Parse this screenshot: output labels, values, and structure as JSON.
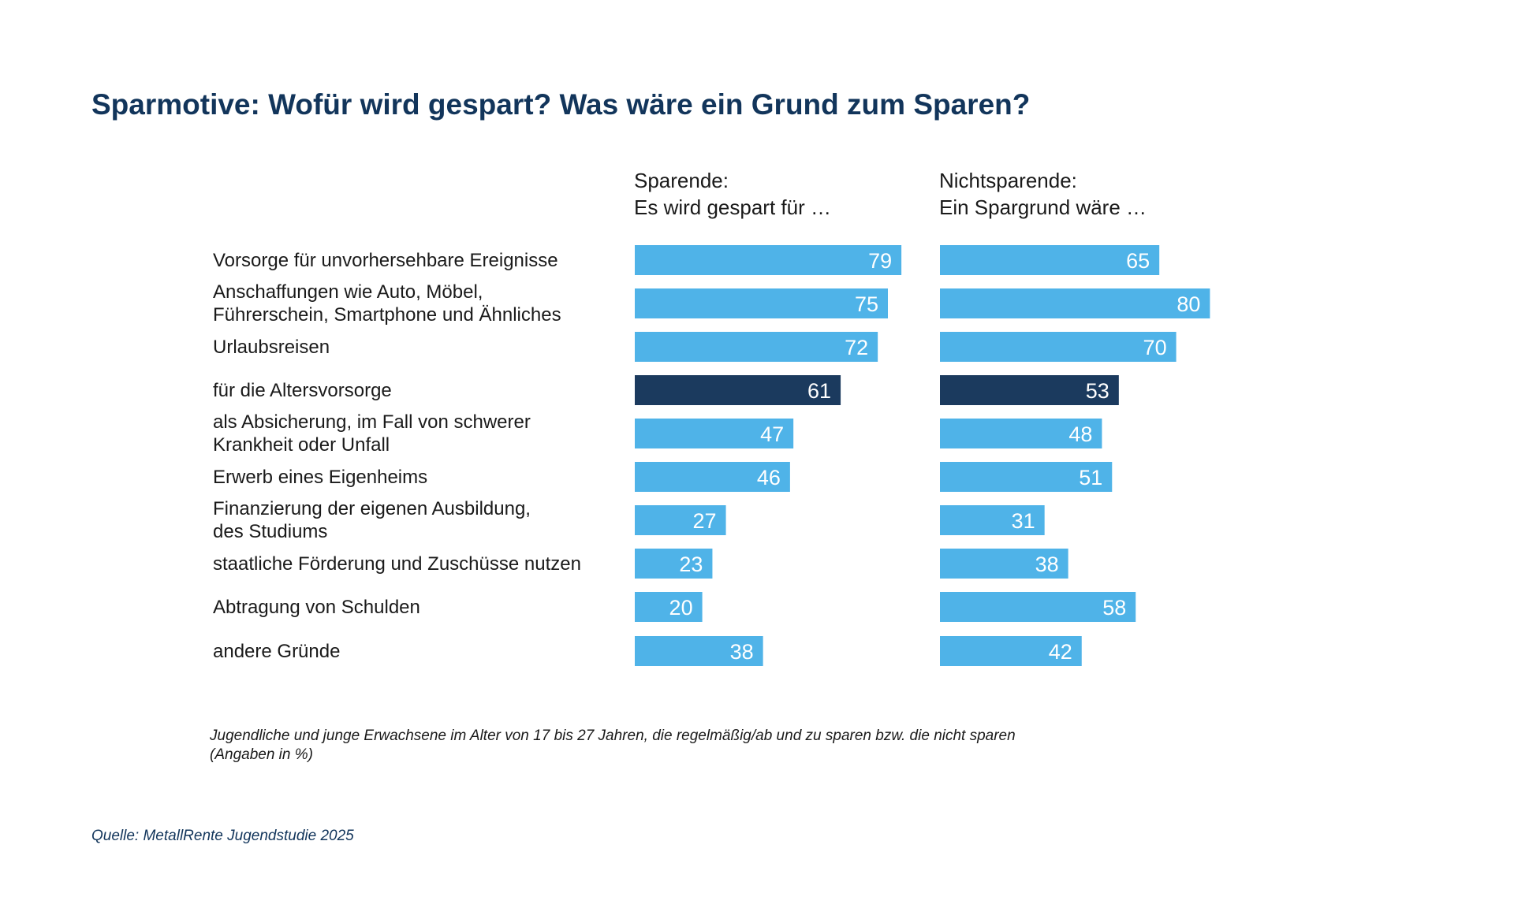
{
  "colors": {
    "bar_default": "#4fb3e8",
    "bar_highlight": "#1b3a5e",
    "title": "#12355b",
    "value_label": "#ffffff"
  },
  "chart_data": [
    {
      "type": "bar",
      "orientation": "horizontal",
      "title": "Sparmotive: Wofür wird gespart? Was wäre ein Grund zum Sparen?",
      "panel_title": "Sparende:\nEs wird gespart für …",
      "categories": [
        "Vorsorge für unvorhersehbare Ereignisse",
        "Anschaffungen wie Auto, Möbel,\nFührerschein, Smartphone und Ähnliches",
        "Urlaubsreisen",
        "für die Altersvorsorge",
        "als Absicherung, im Fall von schwerer\nKrankheit oder Unfall",
        "Erwerb eines Eigenheims",
        "Finanzierung der eigenen Ausbildung,\ndes Studiums",
        "staatliche Förderung und Zuschüsse nutzen",
        "Abtragung von Schulden",
        "andere Gründe"
      ],
      "values": [
        79,
        75,
        72,
        61,
        47,
        46,
        27,
        23,
        20,
        38
      ],
      "highlight_index": 3,
      "xlim": [
        0,
        100
      ],
      "grid": false,
      "data_labels": true
    },
    {
      "type": "bar",
      "orientation": "horizontal",
      "panel_title": "Nichtsparende:\nEin Spargrund wäre …",
      "values": [
        65,
        80,
        70,
        53,
        48,
        51,
        31,
        38,
        58,
        42
      ],
      "highlight_index": 3,
      "xlim": [
        0,
        100
      ],
      "grid": false,
      "data_labels": true
    }
  ],
  "footnote": "Jugendliche und junge Erwachsene im Alter von 17 bis 27 Jahren, die regelmäßig/ab und zu sparen bzw. die nicht sparen\n(Angaben in %)",
  "source": "Quelle: MetallRente Jugendstudie 2025"
}
